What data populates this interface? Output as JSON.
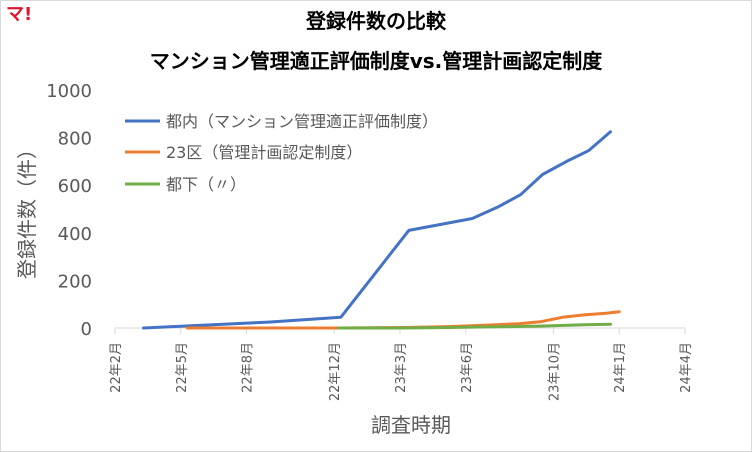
{
  "brand": {
    "logo_text": "マ!"
  },
  "chart_data": {
    "type": "line",
    "title": "登録件数の比較",
    "subtitle": "マンション管理適正評価制度vs.管理計画認定制度",
    "xlabel": "調査時期",
    "ylabel": "登録件数（件）",
    "ylim": [
      0,
      1000
    ],
    "y_ticks": [
      0,
      200,
      400,
      600,
      800,
      1000
    ],
    "x_ticks": [
      "22年2月",
      "22年5月",
      "22年8月",
      "22年12月",
      "23年3月",
      "23年6月",
      "23年10月",
      "24年1月",
      "24年4月"
    ],
    "x_tick_months": [
      0,
      3,
      6,
      10,
      13,
      16,
      20,
      23,
      26
    ],
    "grid": false,
    "legend": "top-left",
    "series": [
      {
        "name": "都内（マンション管理適正評価制度）",
        "color": "#4472c4",
        "x": [
          1.3,
          7.0,
          10.3,
          13.4,
          16.3,
          17.5,
          18.5,
          19.5,
          20.6,
          21.6,
          22.6
        ],
        "values": [
          0,
          25,
          45,
          410,
          460,
          510,
          560,
          645,
          700,
          745,
          825
        ]
      },
      {
        "name": "23区（管理計画認定制度）",
        "color": "#ed7d31",
        "x": [
          3.3,
          10.2,
          13.2,
          15.2,
          16.4,
          17.4,
          18.4,
          19.4,
          20.4,
          21.4,
          22.4,
          23.0
        ],
        "values": [
          0,
          0,
          2,
          6,
          10,
          14,
          18,
          26,
          45,
          55,
          62,
          68
        ]
      },
      {
        "name": "都下（〃）",
        "color": "#70ad47",
        "x": [
          10.2,
          13.2,
          15.2,
          17.4,
          19.4,
          21.4,
          22.6
        ],
        "values": [
          0,
          0,
          2,
          5,
          8,
          14,
          16
        ]
      }
    ]
  }
}
